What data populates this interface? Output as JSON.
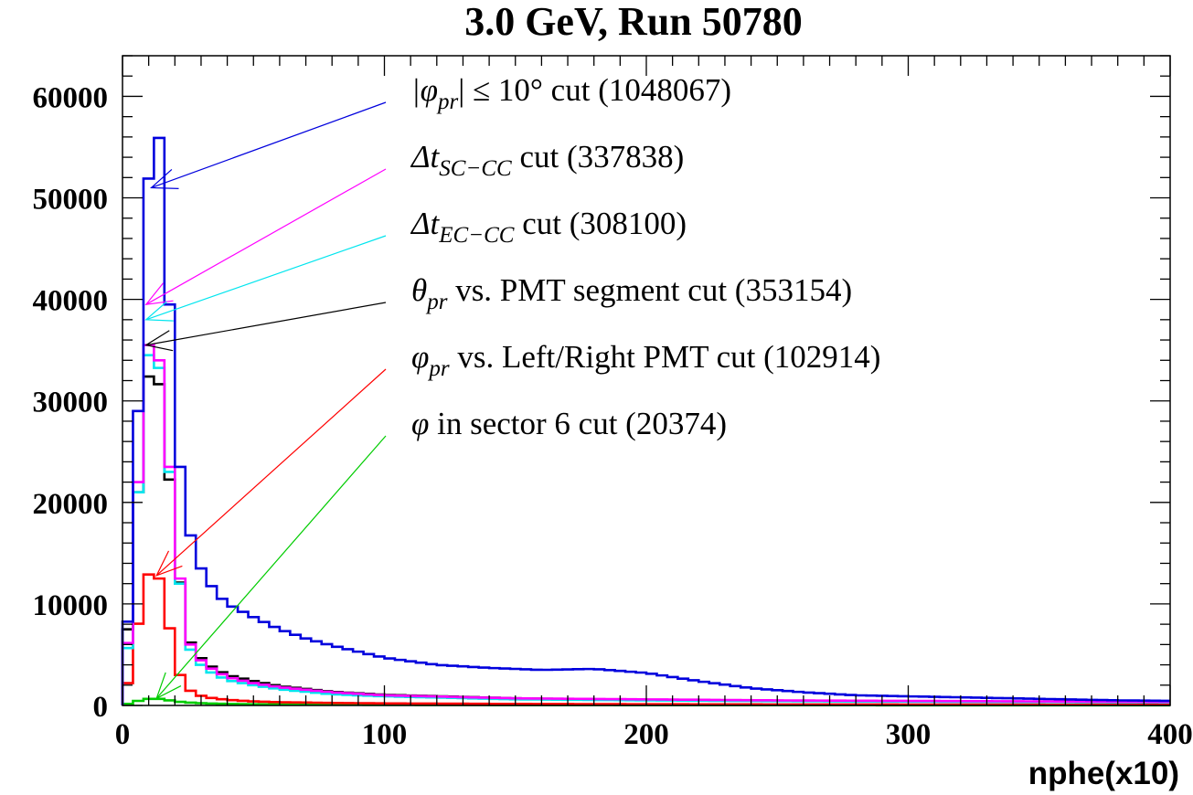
{
  "chart_data": {
    "type": "line",
    "title": "3.0 GeV, Run 50780",
    "xlabel": "nphe(x10)",
    "ylabel": "",
    "xlim": [
      0,
      400
    ],
    "ylim": [
      0,
      64000
    ],
    "x_ticks": [
      "0",
      "100",
      "200",
      "300",
      "400"
    ],
    "y_ticks": [
      "0",
      "10000",
      "20000",
      "30000",
      "40000",
      "50000",
      "60000"
    ],
    "grid": false,
    "bin_width": 4,
    "legend": [
      {
        "label": "|φpr| ≤ 10° cut (1048067)",
        "sym": "|φ",
        "sub": "pr",
        "rest": "| ≤ 10° cut (1048067)",
        "color": "#0000dd",
        "arrow_x": 11,
        "arrow_y": 51000
      },
      {
        "label": "ΔtSC−CC cut (337838)",
        "sym": "Δt",
        "sub": "SC−CC",
        "rest": " cut (337838)",
        "color": "#ff00ff",
        "arrow_x": 9,
        "arrow_y": 39500
      },
      {
        "label": "ΔtEC−CC cut (308100)",
        "sym": "Δt",
        "sub": "EC−CC",
        "rest": " cut (308100)",
        "color": "#00e5ee",
        "arrow_x": 9,
        "arrow_y": 38000
      },
      {
        "label": "θpr vs. PMT segment cut (353154)",
        "sym": "θ",
        "sub": "pr",
        "rest": " vs. PMT segment cut (353154)",
        "color": "#000000",
        "arrow_x": 9,
        "arrow_y": 35500
      },
      {
        "label": "φpr vs. Left/Right PMT cut (102914)",
        "sym": "φ",
        "sub": "pr",
        "rest": " vs. Left/Right PMT cut (102914)",
        "color": "#ff0000",
        "arrow_x": 13,
        "arrow_y": 12800
      },
      {
        "label": "φ in sector 6 cut (20374)",
        "sym": "φ",
        "sub": "",
        "rest": " in sector 6 cut (20374)",
        "color": "#00cc00",
        "arrow_x": 13,
        "arrow_y": 700
      }
    ],
    "series": [
      {
        "color": "#0000dd",
        "x": [
          0,
          4,
          8,
          12,
          16,
          20,
          24,
          28,
          32,
          36,
          40,
          50,
          60,
          70,
          80,
          90,
          100,
          120,
          140,
          160,
          180,
          200,
          220,
          240,
          260,
          280,
          300,
          320,
          340,
          360,
          380,
          400
        ],
        "values": [
          1500,
          15000,
          43000,
          60800,
          51000,
          28000,
          19000,
          14500,
          12500,
          11000,
          10000,
          8700,
          7500,
          6600,
          5900,
          5300,
          4700,
          4000,
          3700,
          3500,
          3600,
          3200,
          2400,
          1700,
          1300,
          1000,
          900,
          800,
          700,
          600,
          500,
          450
        ]
      },
      {
        "color": "#ff00ff",
        "x": [
          0,
          4,
          8,
          12,
          16,
          20,
          24,
          28,
          32,
          40,
          50,
          60,
          80,
          100,
          150,
          200,
          250,
          300,
          350,
          400
        ],
        "values": [
          300,
          12000,
          32000,
          39000,
          29000,
          18000,
          7000,
          5000,
          3900,
          2800,
          2200,
          1800,
          1300,
          1000,
          700,
          600,
          500,
          450,
          400,
          350
        ]
      },
      {
        "color": "#00e5ee",
        "x": [
          0,
          4,
          8,
          12,
          16,
          20,
          24,
          28,
          32,
          40,
          50,
          60,
          80,
          100,
          150,
          200,
          250,
          300,
          350,
          400
        ],
        "values": [
          300,
          11000,
          31000,
          38000,
          28500,
          17500,
          6500,
          4500,
          3500,
          2500,
          2000,
          1600,
          1100,
          900,
          600,
          500,
          420,
          370,
          330,
          300
        ]
      },
      {
        "color": "#000000",
        "x": [
          0,
          4,
          8,
          12,
          16,
          20,
          24,
          28,
          32,
          40,
          50,
          60,
          80,
          100,
          150,
          200,
          250,
          300,
          350,
          400
        ],
        "values": [
          2000,
          13000,
          29000,
          35800,
          27500,
          17000,
          7200,
          5200,
          4100,
          3000,
          2400,
          1900,
          1350,
          1050,
          700,
          550,
          450,
          400,
          350,
          300
        ]
      },
      {
        "color": "#ff0000",
        "x": [
          0,
          4,
          8,
          12,
          16,
          20,
          24,
          28,
          32,
          40,
          50,
          60,
          80,
          100,
          150,
          200,
          250,
          300,
          350,
          400
        ],
        "values": [
          100,
          4300,
          11800,
          14000,
          11000,
          4200,
          1800,
          1100,
          800,
          550,
          400,
          320,
          250,
          200,
          150,
          120,
          100,
          90,
          80,
          70
        ]
      },
      {
        "color": "#00cc00",
        "x": [
          0,
          4,
          8,
          12,
          16,
          20,
          24,
          28,
          32,
          40,
          50,
          60,
          80,
          100,
          150,
          200,
          250,
          300,
          350,
          400
        ],
        "values": [
          0,
          300,
          600,
          700,
          600,
          400,
          300,
          250,
          200,
          150,
          120,
          100,
          80,
          60,
          40,
          30,
          25,
          20,
          15,
          10
        ]
      }
    ]
  }
}
